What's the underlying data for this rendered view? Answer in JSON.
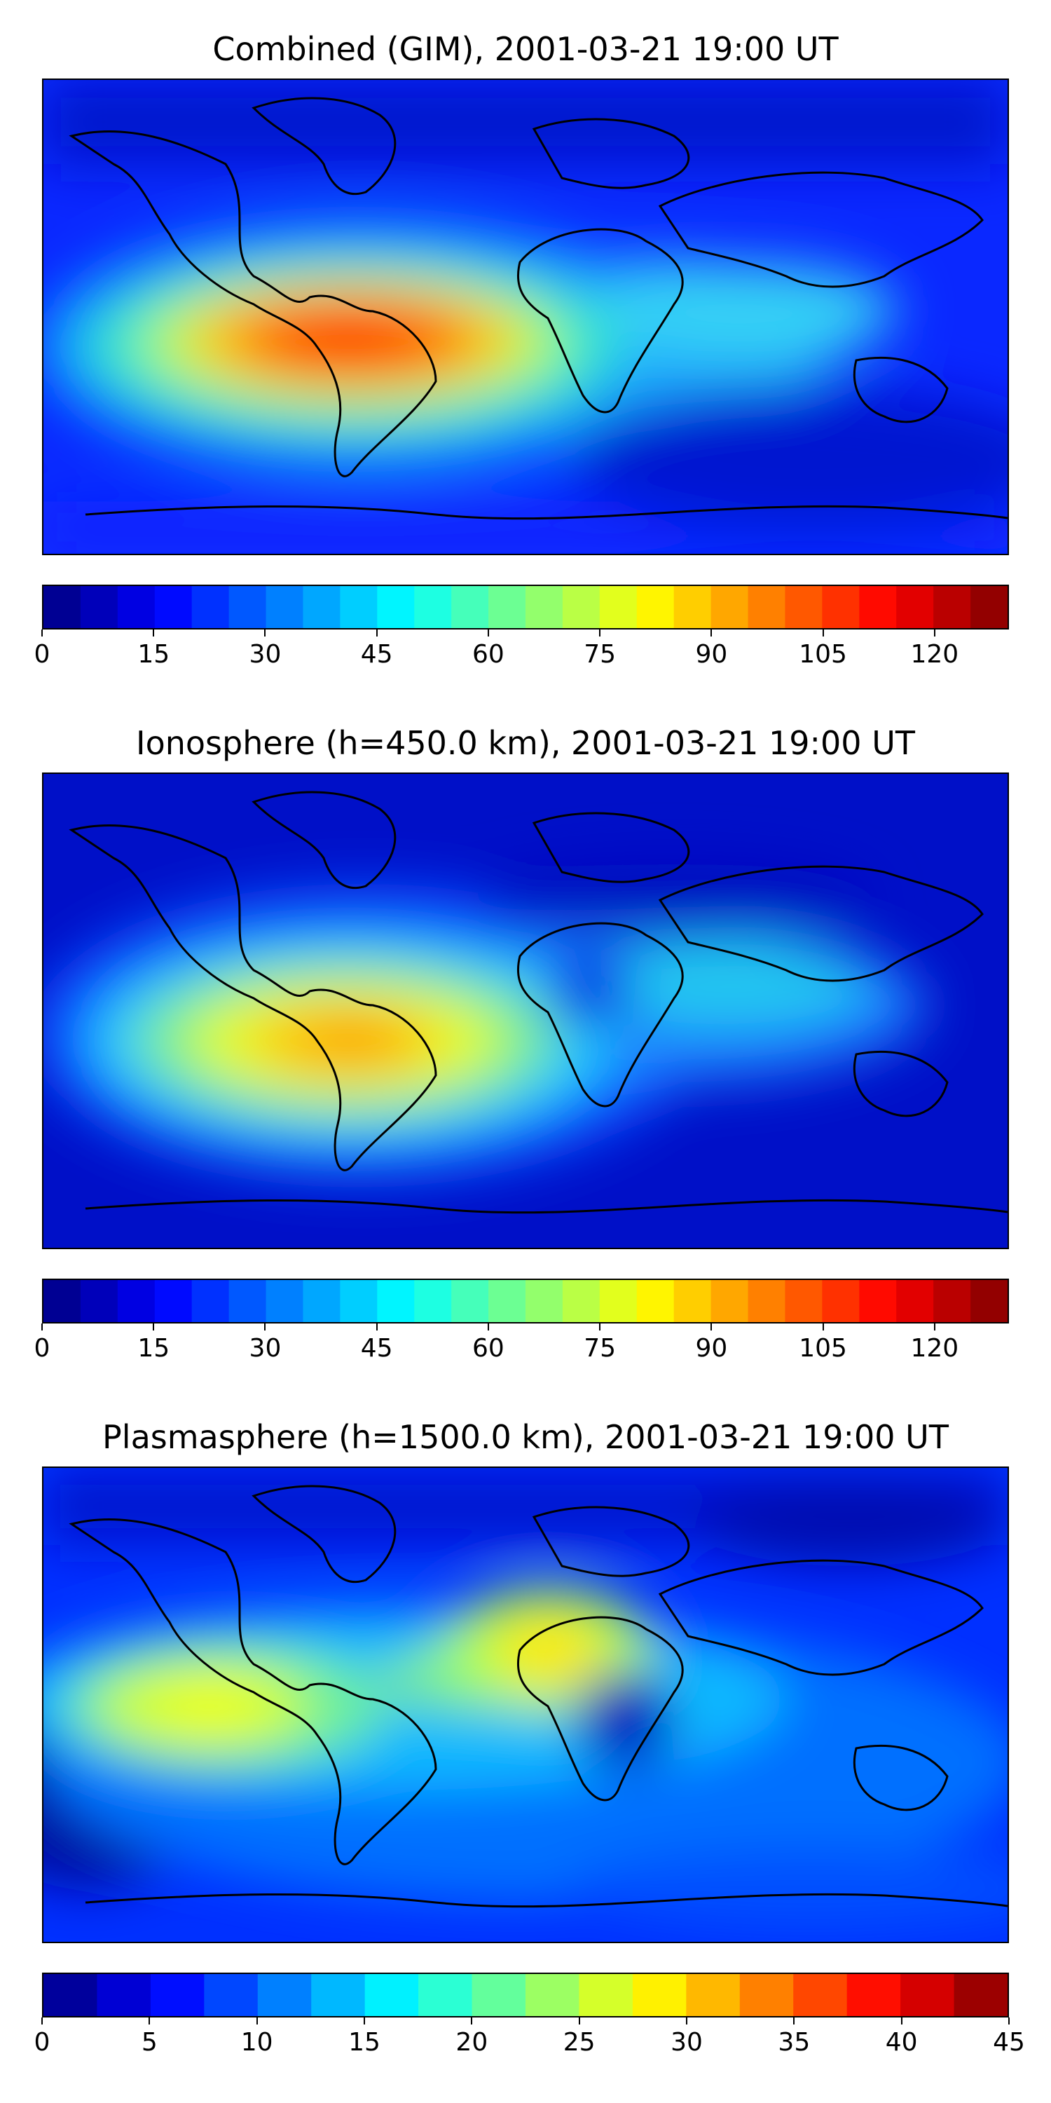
{
  "panels": [
    {
      "id": "combined",
      "title": "Combined (GIM), 2001-03-21 19:00 UT",
      "vmin": 0,
      "vmax": 130,
      "levels": 26,
      "ticks": [
        0,
        15,
        30,
        45,
        60,
        75,
        90,
        105,
        120
      ]
    },
    {
      "id": "ionosphere",
      "title": "Ionosphere  (h=450.0 km), 2001-03-21 19:00 UT",
      "vmin": 0,
      "vmax": 130,
      "levels": 26,
      "ticks": [
        0,
        15,
        30,
        45,
        60,
        75,
        90,
        105,
        120
      ]
    },
    {
      "id": "plasmasphere",
      "title": "Plasmasphere (h=1500.0 km), 2001-03-21 19:00 UT",
      "vmin": 0,
      "vmax": 45,
      "levels": 18,
      "ticks": [
        0,
        5,
        10,
        15,
        20,
        25,
        30,
        35,
        40,
        45
      ]
    }
  ],
  "chart_data": [
    {
      "type": "heatmap",
      "title": "Combined (GIM), 2001-03-21 19:00 UT",
      "colormap": "jet",
      "colorbar_range": [
        0,
        130
      ],
      "colorbar_ticks": [
        0,
        15,
        30,
        45,
        60,
        75,
        90,
        105,
        120
      ],
      "map": "world coastlines, equirectangular",
      "max_region": "South America / equatorial Atlantic",
      "approx_max_value": 115
    },
    {
      "type": "heatmap",
      "title": "Ionosphere  (h=450.0 km), 2001-03-21 19:00 UT",
      "colormap": "jet",
      "colorbar_range": [
        0,
        130
      ],
      "colorbar_ticks": [
        0,
        15,
        30,
        45,
        60,
        75,
        90,
        105,
        120
      ],
      "map": "world coastlines, equirectangular",
      "max_region": "South America",
      "approx_max_value": 95
    },
    {
      "type": "heatmap",
      "title": "Plasmasphere (h=1500.0 km), 2001-03-21 19:00 UT",
      "colormap": "jet",
      "colorbar_range": [
        0,
        45
      ],
      "colorbar_ticks": [
        0,
        5,
        10,
        15,
        20,
        25,
        30,
        35,
        40,
        45
      ],
      "map": "world coastlines, equirectangular",
      "max_region": "Eastern Pacific and Central Africa",
      "approx_max_value": 29
    }
  ]
}
